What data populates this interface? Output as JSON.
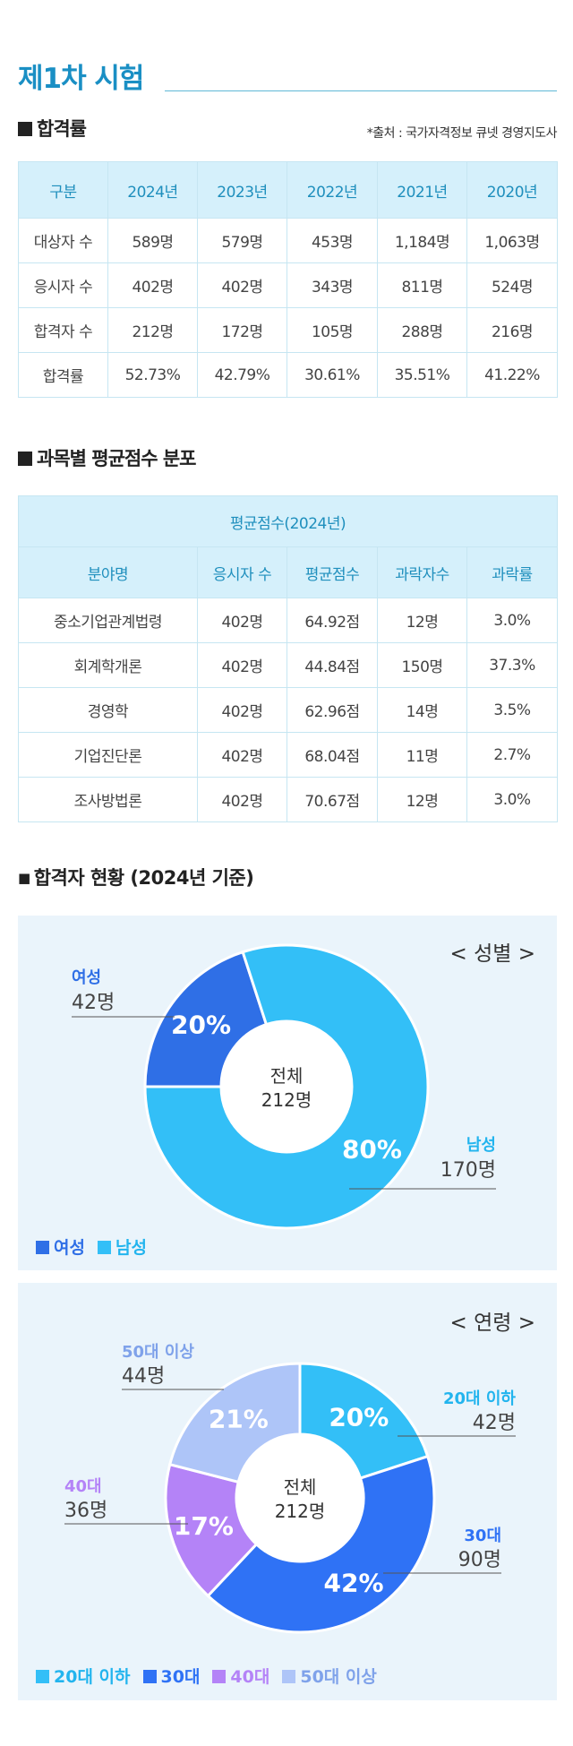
{
  "page_title": "제1차 시험",
  "section1": {
    "heading": "합격률",
    "source": "*출처 : 국가자격정보 큐넷 경영지도사",
    "headers": [
      "구분",
      "2024년",
      "2023년",
      "2022년",
      "2021년",
      "2020년"
    ],
    "rows": [
      [
        "대상자 수",
        "589명",
        "579명",
        "453명",
        "1,184명",
        "1,063명"
      ],
      [
        "응시자 수",
        "402명",
        "402명",
        "343명",
        "811명",
        "524명"
      ],
      [
        "합격자 수",
        "212명",
        "172명",
        "105명",
        "288명",
        "216명"
      ],
      [
        "합격률",
        "52.73%",
        "42.79%",
        "30.61%",
        "35.51%",
        "41.22%"
      ]
    ]
  },
  "section2": {
    "heading": "과목별 평균점수 분포",
    "super_header": "평균점수(2024년)",
    "headers": [
      "분야명",
      "응시자 수",
      "평균점수",
      "과락자수",
      "과락률"
    ],
    "rows": [
      [
        "중소기업관계법령",
        "402명",
        "64.92점",
        "12명",
        "3.0%"
      ],
      [
        "회계학개론",
        "402명",
        "44.84점",
        "150명",
        "37.3%"
      ],
      [
        "경영학",
        "402명",
        "62.96점",
        "14명",
        "3.5%"
      ],
      [
        "기업진단론",
        "402명",
        "68.04점",
        "11명",
        "2.7%"
      ],
      [
        "조사방법론",
        "402명",
        "70.67점",
        "12명",
        "3.0%"
      ]
    ]
  },
  "section3": {
    "heading": "합격자 현황 (2024년 기준)"
  },
  "chart_data": [
    {
      "type": "pie",
      "title": "< 성별 >",
      "center_label": [
        "전체",
        "212명"
      ],
      "slices": [
        {
          "name": "여성",
          "count_label": "42명",
          "percent": 20,
          "percent_label": "20%",
          "color": "#2f6fe6"
        },
        {
          "name": "남성",
          "count_label": "170명",
          "percent": 80,
          "percent_label": "80%",
          "color": "#33bff7"
        }
      ],
      "legend": [
        "여성",
        "남성"
      ]
    },
    {
      "type": "pie",
      "title": "< 연령 >",
      "center_label": [
        "전체",
        "212명"
      ],
      "slices": [
        {
          "name": "20대 이하",
          "count_label": "42명",
          "percent": 20,
          "percent_label": "20%",
          "color": "#33bff7"
        },
        {
          "name": "30대",
          "count_label": "90명",
          "percent": 42,
          "percent_label": "42%",
          "color": "#2f72f5"
        },
        {
          "name": "40대",
          "count_label": "36명",
          "percent": 17,
          "percent_label": "17%",
          "color": "#b483f7"
        },
        {
          "name": "50대 이상",
          "count_label": "44명",
          "percent": 21,
          "percent_label": "21%",
          "color": "#aec5f8"
        }
      ],
      "legend": [
        "20대 이하",
        "30대",
        "40대",
        "50대 이상"
      ]
    }
  ]
}
